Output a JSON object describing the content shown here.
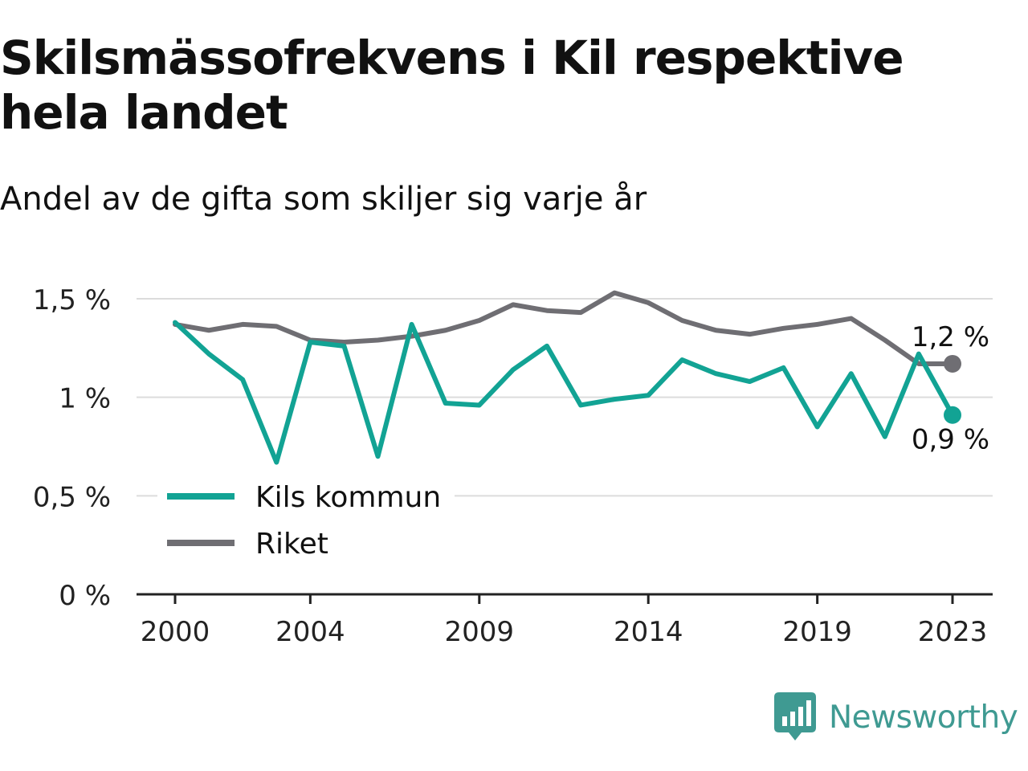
{
  "title": "Skilsmässofrekvens i Kil respektive hela landet",
  "subtitle": "Andel av de gifta som skiljer sig varje år",
  "brand": {
    "name": "Newsworthy",
    "icon": "newsworthy-logo-icon",
    "color": "#3f9a92"
  },
  "colors": {
    "kil": "#12a394",
    "riket": "#6f6e73",
    "grid": "#dcdcdc",
    "axis": "#222222"
  },
  "chart_data": {
    "type": "line",
    "x": [
      2000,
      2001,
      2002,
      2003,
      2004,
      2005,
      2006,
      2007,
      2008,
      2009,
      2010,
      2011,
      2012,
      2013,
      2014,
      2015,
      2016,
      2017,
      2018,
      2019,
      2020,
      2021,
      2022,
      2023
    ],
    "x_ticks": [
      2000,
      2004,
      2009,
      2014,
      2019,
      2023
    ],
    "x_tick_labels": [
      "2000",
      "2004",
      "2009",
      "2014",
      "2019",
      "2023"
    ],
    "y_ticks": [
      0,
      0.5,
      1,
      1.5
    ],
    "y_tick_labels": [
      "0 %",
      "0,5 %",
      "1 %",
      "1,5 %"
    ],
    "ylim": [
      0,
      1.5
    ],
    "grid": true,
    "legend_position": "bottom-left",
    "series": [
      {
        "name": "Kils kommun",
        "color": "#12a394",
        "values": [
          1.38,
          1.22,
          1.09,
          0.67,
          1.28,
          1.26,
          0.7,
          1.37,
          0.97,
          0.96,
          1.14,
          1.26,
          0.96,
          0.99,
          1.01,
          1.19,
          1.12,
          1.08,
          1.15,
          0.85,
          1.12,
          0.8,
          1.22,
          0.91
        ],
        "end_label": "0,9 %"
      },
      {
        "name": "Riket",
        "color": "#6f6e73",
        "values": [
          1.37,
          1.34,
          1.37,
          1.36,
          1.29,
          1.28,
          1.29,
          1.31,
          1.34,
          1.39,
          1.47,
          1.44,
          1.43,
          1.53,
          1.48,
          1.39,
          1.34,
          1.32,
          1.35,
          1.37,
          1.4,
          1.29,
          1.17,
          1.17
        ],
        "end_label": "1,2 %"
      }
    ]
  }
}
